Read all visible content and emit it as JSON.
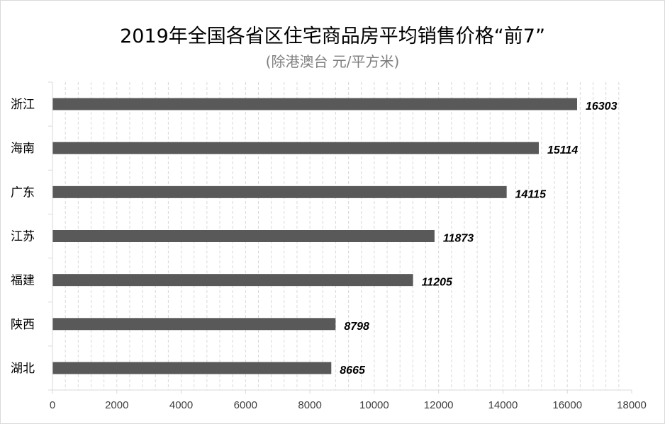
{
  "chart_data": {
    "type": "bar",
    "orientation": "horizontal",
    "title": "2019年全国各省区住宅商品房平均销售价格“前7”",
    "subtitle": "(除港澳台 元/平方米)",
    "categories": [
      "浙江",
      "海南",
      "广东",
      "江苏",
      "福建",
      "陕西",
      "湖北"
    ],
    "values": [
      16303,
      15114,
      14115,
      11873,
      11205,
      8798,
      8665
    ],
    "value_labels": [
      "16303",
      "15114",
      "14115",
      "11873",
      "11205",
      "8798",
      "8665"
    ],
    "xlim": [
      0,
      18000
    ],
    "x_ticks": [
      "0",
      "2000",
      "4000",
      "6000",
      "8000",
      "10000",
      "12000",
      "14000",
      "16000",
      "18000"
    ],
    "xlabel": "",
    "ylabel": "",
    "grid": "vertical minor dashed",
    "legend": "none",
    "bar_color": "#595959"
  }
}
